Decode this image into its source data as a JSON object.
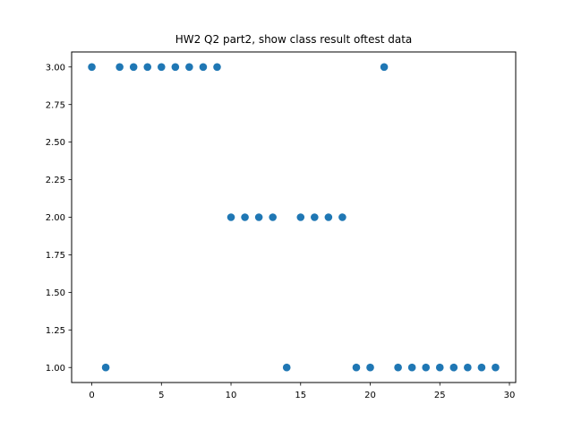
{
  "chart_data": {
    "type": "scatter",
    "title": "HW2 Q2 part2, show class result oftest data",
    "xlabel": "",
    "ylabel": "",
    "xlim": [
      -1.45,
      30.45
    ],
    "ylim": [
      0.9,
      3.1
    ],
    "xticks": [
      0,
      5,
      10,
      15,
      20,
      25,
      30
    ],
    "yticks": [
      1.0,
      1.25,
      1.5,
      1.75,
      2.0,
      2.25,
      2.5,
      2.75,
      3.0
    ],
    "xtick_labels": [
      "0",
      "5",
      "10",
      "15",
      "20",
      "25",
      "30"
    ],
    "ytick_labels": [
      "1.00",
      "1.25",
      "1.50",
      "1.75",
      "2.00",
      "2.25",
      "2.50",
      "2.75",
      "3.00"
    ],
    "grid": false,
    "color": "#1f77b4",
    "series": [
      {
        "x": [
          0,
          1,
          2,
          3,
          4,
          5,
          6,
          7,
          8,
          9,
          10,
          11,
          12,
          13,
          14,
          15,
          16,
          17,
          18,
          19,
          20,
          21,
          22,
          23,
          24,
          25,
          26,
          27,
          28,
          29
        ],
        "y": [
          3,
          1,
          3,
          3,
          3,
          3,
          3,
          3,
          3,
          3,
          2,
          2,
          2,
          2,
          1,
          2,
          2,
          2,
          2,
          1,
          1,
          3,
          1,
          1,
          1,
          1,
          1,
          1,
          1,
          1
        ]
      }
    ]
  }
}
